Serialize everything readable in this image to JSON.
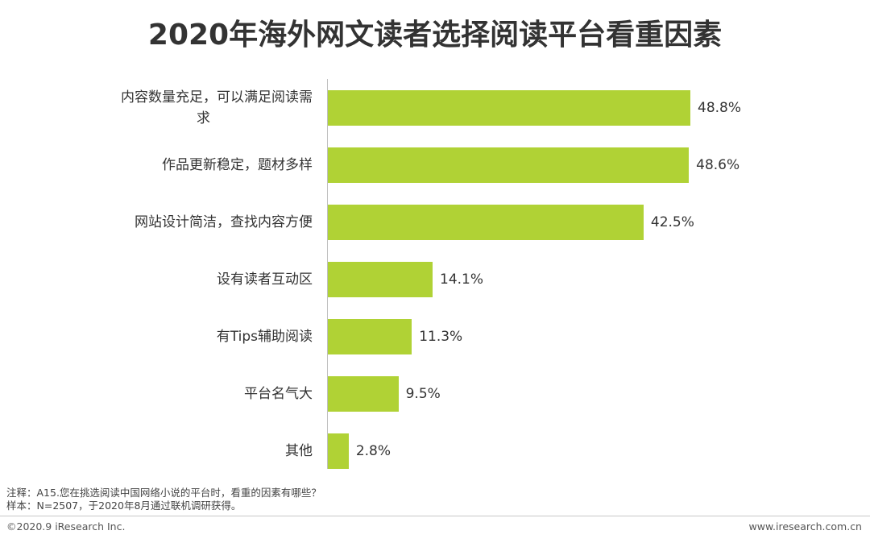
{
  "title": "2020年海外网文读者选择阅读平台看重因素",
  "chart_data": {
    "type": "bar",
    "orientation": "horizontal",
    "categories": [
      "内容数量充足，可以满足阅读需求",
      "作品更新稳定，题材多样",
      "网站设计简洁，查找内容方便",
      "设有读者互动区",
      "有Tips辅助阅读",
      "平台名气大",
      "其他"
    ],
    "category_lines": [
      [
        "内容数量充足，可以满足阅读需",
        "求"
      ],
      [
        "作品更新稳定，题材多样"
      ],
      [
        "网站设计简洁，查找内容方便"
      ],
      [
        "设有读者互动区"
      ],
      [
        "有Tips辅助阅读"
      ],
      [
        "平台名气大"
      ],
      [
        "其他"
      ]
    ],
    "values": [
      48.8,
      48.6,
      42.5,
      14.1,
      11.3,
      9.5,
      2.8
    ],
    "value_labels": [
      "48.8%",
      "48.6%",
      "42.5%",
      "14.1%",
      "11.3%",
      "9.5%",
      "2.8%"
    ],
    "xlim": [
      0,
      60
    ],
    "grid": false,
    "bar_color": "#b0d235"
  },
  "notes": {
    "note1": "注释：A15.您在挑选阅读中国网络小说的平台时，看重的因素有哪些？",
    "note2": "样本：N=2507，于2020年8月通过联机调研获得。"
  },
  "footer": {
    "copyright": "©2020.9 iResearch Inc.",
    "url": "www.iresearch.com.cn"
  }
}
